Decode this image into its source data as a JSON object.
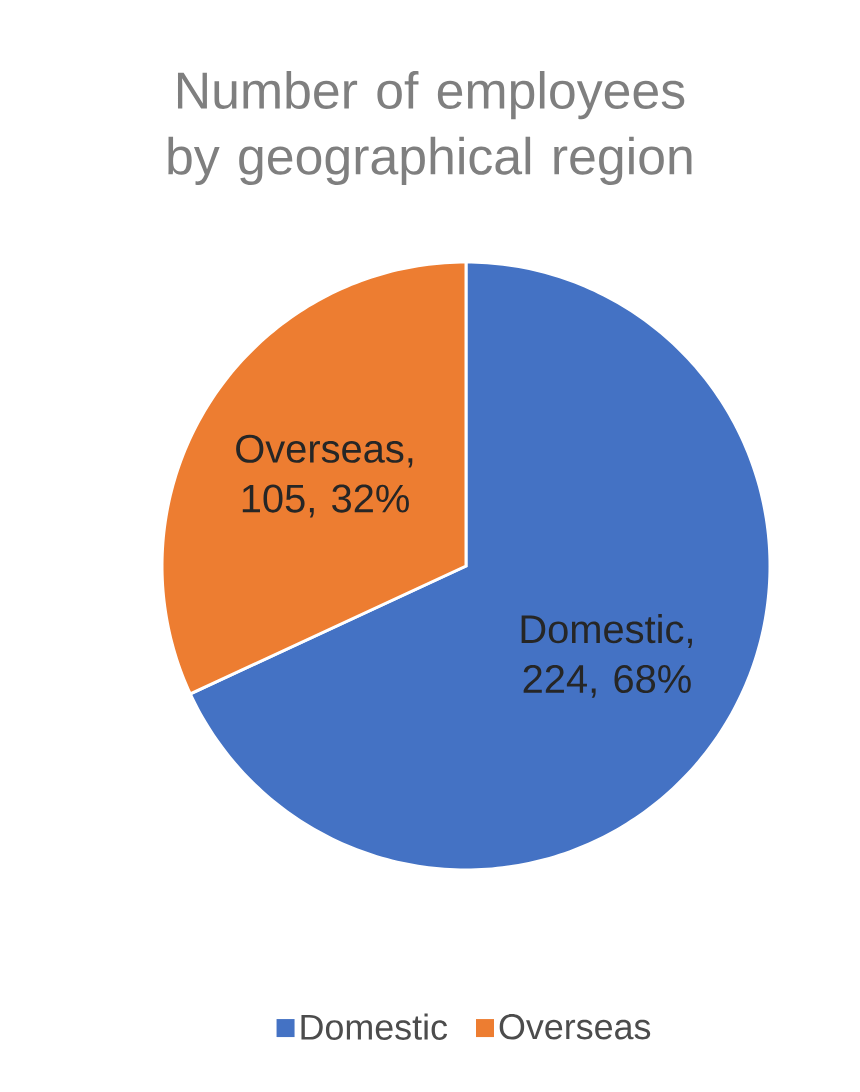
{
  "chart_data": {
    "type": "pie",
    "title": "Number of employees by geographical region",
    "categories": [
      "Domestic",
      "Overseas"
    ],
    "values": [
      224,
      105
    ],
    "colors": [
      "#4472c4",
      "#ed7d31"
    ],
    "value_labels": [
      "Domestic, 224, 68%",
      "Overseas, 105, 32%"
    ],
    "legend": "bottom"
  }
}
